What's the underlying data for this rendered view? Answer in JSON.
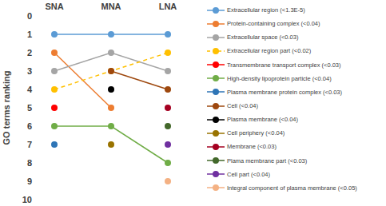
{
  "chart_data": {
    "type": "line",
    "categories": [
      "SNA",
      "MNA",
      "LNA"
    ],
    "y_label": "GO terms ranking",
    "ylim": [
      0,
      10
    ],
    "yticks": [
      0,
      1,
      2,
      3,
      4,
      5,
      6,
      7,
      8,
      9,
      10
    ],
    "grid": false,
    "legend": "right",
    "marker": "circle",
    "series": [
      {
        "name": "Extracellular region (<1.3E-5)",
        "color": "#5B9BD5",
        "values": [
          1,
          1,
          1
        ]
      },
      {
        "name": "Protein-containing complex (<0.04)",
        "color": "#ED7D31",
        "values": [
          2,
          5,
          null
        ]
      },
      {
        "name": "Extracellular space (<0.03)",
        "color": "#A5A5A5",
        "values": [
          3,
          2,
          3
        ]
      },
      {
        "name": "Extracellular region part (<0.02)",
        "color": "#FFC000",
        "line_style": "dashed",
        "values": [
          4,
          3,
          2
        ]
      },
      {
        "name": "Transmembrane transport complex (<0.03)",
        "color": "#FF0000",
        "values": [
          5,
          null,
          null
        ]
      },
      {
        "name": "High-density lipoprotein particle (<0.04)",
        "color": "#70AD47",
        "values": [
          6,
          6,
          8
        ]
      },
      {
        "name": "Plasma membrane protein complex (<0.03)",
        "color": "#2E75B6",
        "values": [
          7,
          null,
          null
        ]
      },
      {
        "name": "Cell (<0.04)",
        "color": "#9E480E",
        "values": [
          null,
          3,
          4
        ]
      },
      {
        "name": "Plasma membrane (<0.04)",
        "color": "#000000",
        "values": [
          null,
          4,
          null
        ]
      },
      {
        "name": "Cell periphery (<0.04)",
        "color": "#997300",
        "values": [
          null,
          7,
          null
        ]
      },
      {
        "name": "Membrane (<0.03)",
        "color": "#A50021",
        "values": [
          null,
          null,
          5
        ]
      },
      {
        "name": "Plama membrane part (<0.03)",
        "color": "#43682B",
        "values": [
          null,
          null,
          6
        ]
      },
      {
        "name": "Cell part (<0.04)",
        "color": "#7030A0",
        "values": [
          null,
          null,
          7
        ]
      },
      {
        "name": "Integral component of plasma membrane (<0.05)",
        "color": "#F4B183",
        "values": [
          null,
          null,
          9
        ]
      }
    ]
  }
}
